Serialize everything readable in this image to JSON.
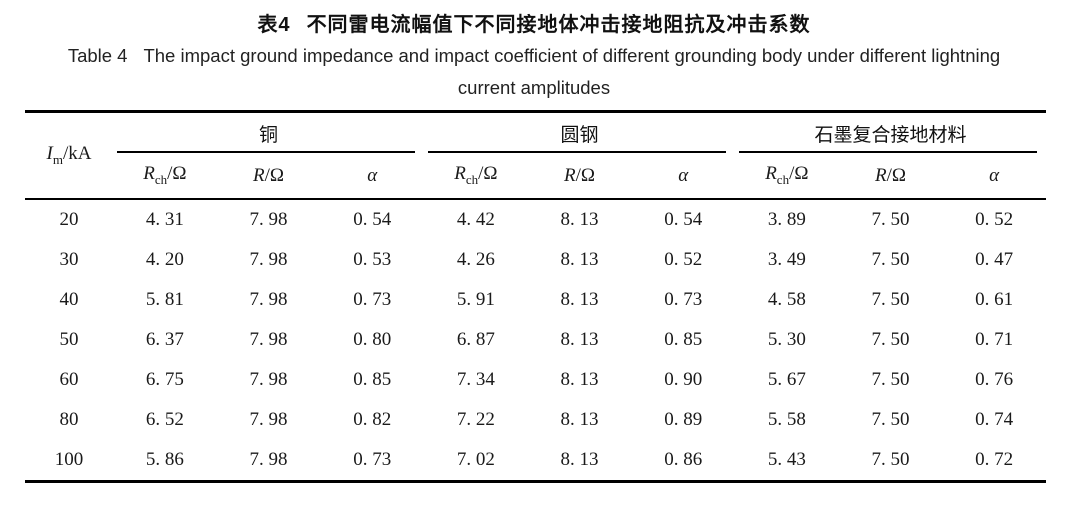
{
  "caption": {
    "zh": {
      "prefix": "表4",
      "title": "不同雷电流幅值下不同接地体冲击接地阻抗及冲击系数"
    },
    "en": {
      "prefix": "Table 4",
      "line1": "The impact ground impedance and impact coefficient of different grounding body under different lightning",
      "line2": "current amplitudes"
    }
  },
  "table": {
    "im_header": {
      "symbol": "I",
      "subscript": "m",
      "unit": "/kA"
    },
    "groups": [
      {
        "label": "铜"
      },
      {
        "label": "圆钢"
      },
      {
        "label": "石墨复合接地材料"
      }
    ],
    "subheader": {
      "rch": {
        "symbol": "R",
        "subscript": "ch",
        "unit": "/Ω"
      },
      "r": {
        "symbol": "R",
        "unit": "/Ω"
      },
      "alpha": "α"
    },
    "rows": [
      {
        "im": "20",
        "cu": [
          "4. 31",
          "7. 98",
          "0. 54"
        ],
        "steel": [
          "4. 42",
          "8. 13",
          "0. 54"
        ],
        "graphite": [
          "3. 89",
          "7. 50",
          "0. 52"
        ]
      },
      {
        "im": "30",
        "cu": [
          "4. 20",
          "7. 98",
          "0. 53"
        ],
        "steel": [
          "4. 26",
          "8. 13",
          "0. 52"
        ],
        "graphite": [
          "3. 49",
          "7. 50",
          "0. 47"
        ]
      },
      {
        "im": "40",
        "cu": [
          "5. 81",
          "7. 98",
          "0. 73"
        ],
        "steel": [
          "5. 91",
          "8. 13",
          "0. 73"
        ],
        "graphite": [
          "4. 58",
          "7. 50",
          "0. 61"
        ]
      },
      {
        "im": "50",
        "cu": [
          "6. 37",
          "7. 98",
          "0. 80"
        ],
        "steel": [
          "6. 87",
          "8. 13",
          "0. 85"
        ],
        "graphite": [
          "5. 30",
          "7. 50",
          "0. 71"
        ]
      },
      {
        "im": "60",
        "cu": [
          "6. 75",
          "7. 98",
          "0. 85"
        ],
        "steel": [
          "7. 34",
          "8. 13",
          "0. 90"
        ],
        "graphite": [
          "5. 67",
          "7. 50",
          "0. 76"
        ]
      },
      {
        "im": "80",
        "cu": [
          "6. 52",
          "7. 98",
          "0. 82"
        ],
        "steel": [
          "7. 22",
          "8. 13",
          "0. 89"
        ],
        "graphite": [
          "5. 58",
          "7. 50",
          "0. 74"
        ]
      },
      {
        "im": "100",
        "cu": [
          "5. 86",
          "7. 98",
          "0. 73"
        ],
        "steel": [
          "7. 02",
          "8. 13",
          "0. 86"
        ],
        "graphite": [
          "5. 43",
          "7. 50",
          "0. 72"
        ]
      }
    ]
  }
}
